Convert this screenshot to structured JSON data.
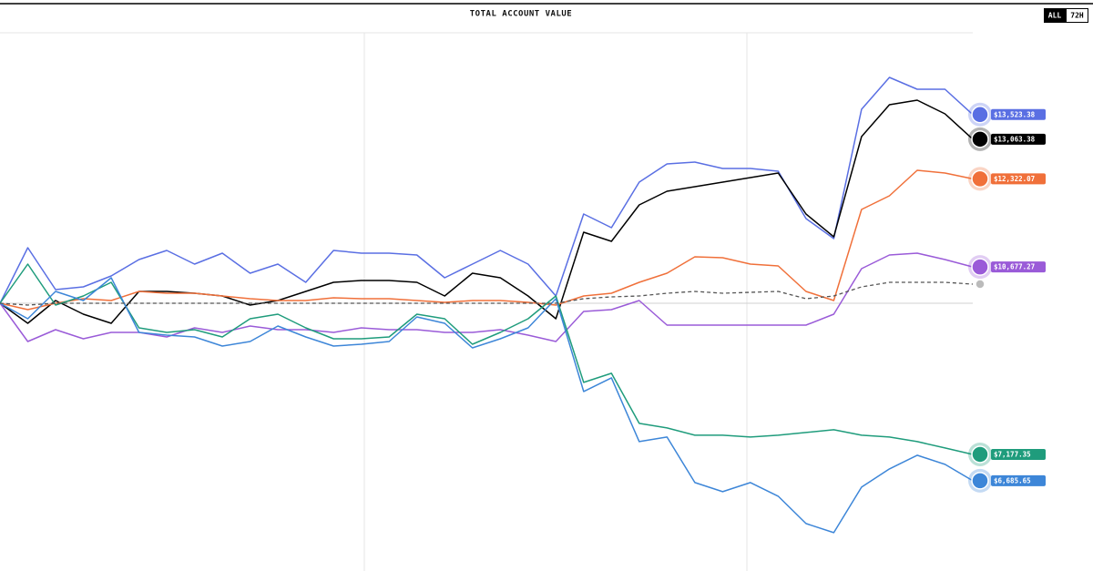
{
  "chart_data": {
    "type": "line",
    "title": "TOTAL ACCOUNT VALUE",
    "buttons": [
      "ALL",
      "72H"
    ],
    "ylim": [
      5000,
      15050
    ],
    "reference_line": 10000,
    "series": [
      {
        "color": "#5a6fe3",
        "end_label": "$13,523.38",
        "values": [
          10000,
          11037,
          10255,
          10306,
          10510,
          10816,
          10986,
          10731,
          10935,
          10561,
          10731,
          10391,
          10986,
          10935,
          10935,
          10901,
          10476,
          10731,
          10986,
          10731,
          10136,
          11666,
          11411,
          12261,
          12601,
          12635,
          12516,
          12516,
          12465,
          11581,
          11207,
          13621,
          14216,
          13995,
          13995,
          13523.38
        ]
      },
      {
        "color": "#000000",
        "end_label": "$13,063.38",
        "values": [
          10000,
          9626,
          10051,
          9796,
          9626,
          10221,
          10221,
          10187,
          10136,
          9966,
          10051,
          10221,
          10391,
          10425,
          10425,
          10391,
          10136,
          10561,
          10476,
          10136,
          9711,
          11326,
          11156,
          11836,
          12091,
          12176,
          12261,
          12346,
          12431,
          11666,
          11241,
          13111,
          13706,
          13791,
          13536,
          13063.38
        ]
      },
      {
        "color": "#f0703a",
        "end_label": "$12,322.07",
        "values": [
          10000,
          9881,
          10000,
          10085,
          10051,
          10221,
          10187,
          10187,
          10136,
          10085,
          10051,
          10051,
          10102,
          10085,
          10085,
          10051,
          10017,
          10051,
          10051,
          10017,
          9966,
          10136,
          10187,
          10391,
          10561,
          10867,
          10850,
          10731,
          10697,
          10221,
          10051,
          11751,
          12006,
          12482,
          12431,
          12322.07
        ]
      },
      {
        "color": "#9a5bd8",
        "end_label": "$10,677.27",
        "values": [
          10000,
          9286,
          9507,
          9337,
          9456,
          9456,
          9371,
          9541,
          9456,
          9575,
          9507,
          9507,
          9456,
          9541,
          9507,
          9507,
          9456,
          9456,
          9507,
          9405,
          9286,
          9847,
          9881,
          10051,
          9592,
          9592,
          9592,
          9592,
          9592,
          9592,
          9796,
          10646,
          10901,
          10935,
          10816,
          10677.27
        ]
      },
      {
        "color": "#1f9c7c",
        "end_label": "$7,177.35",
        "values": [
          10000,
          10731,
          9966,
          10136,
          10391,
          9541,
          9456,
          9507,
          9371,
          9711,
          9796,
          9541,
          9337,
          9337,
          9371,
          9796,
          9711,
          9235,
          9456,
          9711,
          10136,
          8521,
          8691,
          7756,
          7671,
          7535,
          7535,
          7501,
          7535,
          7586,
          7637,
          7535,
          7501,
          7416,
          7297,
          7177.35
        ]
      },
      {
        "color": "#3d86d8",
        "end_label": "$6,685.65",
        "values": [
          10000,
          9711,
          10221,
          10051,
          10476,
          9456,
          9405,
          9371,
          9201,
          9286,
          9575,
          9371,
          9201,
          9235,
          9286,
          9745,
          9626,
          9167,
          9337,
          9541,
          10085,
          8351,
          8606,
          7416,
          7501,
          6651,
          6481,
          6651,
          6396,
          5886,
          5716,
          6566,
          6906,
          7161,
          6991,
          6685.65
        ]
      },
      {
        "color": "#555555",
        "dashed": true,
        "values": [
          10000,
          9966,
          10000,
          10000,
          10000,
          10000,
          10000,
          10000,
          10000,
          10000,
          10000,
          10000,
          10000,
          10000,
          10000,
          10000,
          10000,
          10000,
          10000,
          10000,
          10000,
          10085,
          10119,
          10136,
          10187,
          10221,
          10187,
          10204,
          10221,
          10085,
          10136,
          10306,
          10391,
          10391,
          10391,
          10357
        ]
      }
    ]
  }
}
